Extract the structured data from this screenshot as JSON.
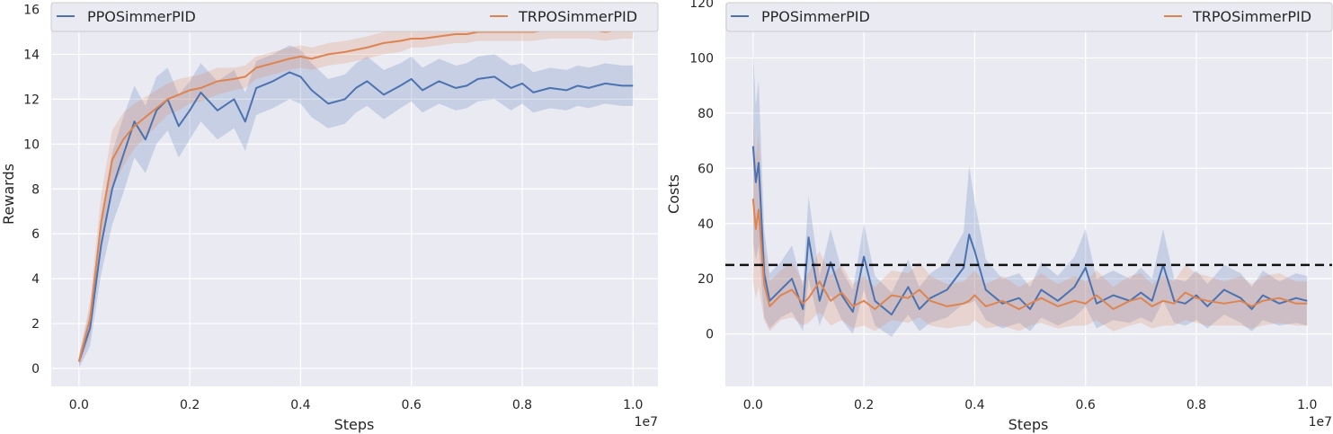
{
  "chart_data": [
    {
      "type": "line",
      "xlabel": "Steps",
      "ylabel": "Rewards",
      "x_scale_label": "1e7",
      "xlim": [
        -0.05,
        1.045
      ],
      "ylim": [
        -0.8,
        16.3
      ],
      "xticks": [
        0.0,
        0.2,
        0.4,
        0.6,
        0.8,
        1.0
      ],
      "xtick_labels": [
        "0.0",
        "0.2",
        "0.4",
        "0.6",
        "0.8",
        "1.0"
      ],
      "yticks": [
        0,
        2,
        4,
        6,
        8,
        10,
        12,
        14,
        16
      ],
      "ytick_labels": [
        "0",
        "2",
        "4",
        "6",
        "8",
        "10",
        "12",
        "14",
        "16"
      ],
      "grid": true,
      "legend_placement": "top",
      "series": [
        {
          "name": "PPOSimmerPID",
          "color": "#4c72b0",
          "x": [
            0.0,
            0.02,
            0.04,
            0.06,
            0.08,
            0.1,
            0.12,
            0.14,
            0.16,
            0.18,
            0.2,
            0.22,
            0.25,
            0.28,
            0.3,
            0.32,
            0.35,
            0.38,
            0.4,
            0.42,
            0.45,
            0.48,
            0.5,
            0.52,
            0.55,
            0.58,
            0.6,
            0.62,
            0.65,
            0.68,
            0.7,
            0.72,
            0.75,
            0.78,
            0.8,
            0.82,
            0.85,
            0.88,
            0.9,
            0.92,
            0.95,
            0.98,
            1.0
          ],
          "y": [
            0.3,
            1.8,
            5.5,
            8.0,
            9.5,
            11.0,
            10.2,
            11.5,
            12.0,
            10.8,
            11.5,
            12.3,
            11.5,
            12.0,
            11.0,
            12.5,
            12.8,
            13.2,
            13.0,
            12.4,
            11.8,
            12.0,
            12.5,
            12.8,
            12.2,
            12.6,
            12.9,
            12.4,
            12.8,
            12.5,
            12.6,
            12.9,
            13.0,
            12.5,
            12.7,
            12.3,
            12.5,
            12.4,
            12.6,
            12.5,
            12.7,
            12.6,
            12.6
          ],
          "band": [
            0.3,
            0.8,
            1.3,
            1.6,
            1.7,
            1.6,
            1.5,
            1.5,
            1.4,
            1.4,
            1.3,
            1.3,
            1.3,
            1.3,
            1.3,
            1.2,
            1.2,
            1.2,
            1.2,
            1.2,
            1.1,
            1.1,
            1.1,
            1.1,
            1.1,
            1.0,
            1.0,
            1.0,
            1.0,
            1.0,
            1.0,
            1.0,
            1.0,
            1.0,
            0.9,
            0.9,
            0.9,
            0.9,
            0.9,
            0.9,
            0.9,
            0.9,
            0.9
          ]
        },
        {
          "name": "TRPOSimmerPID",
          "color": "#dd8452",
          "x": [
            0.0,
            0.02,
            0.04,
            0.06,
            0.08,
            0.1,
            0.12,
            0.14,
            0.16,
            0.18,
            0.2,
            0.22,
            0.25,
            0.28,
            0.3,
            0.32,
            0.35,
            0.38,
            0.4,
            0.42,
            0.45,
            0.48,
            0.5,
            0.52,
            0.55,
            0.58,
            0.6,
            0.62,
            0.65,
            0.68,
            0.7,
            0.72,
            0.75,
            0.78,
            0.8,
            0.82,
            0.85,
            0.88,
            0.9,
            0.92,
            0.95,
            0.98,
            1.0
          ],
          "y": [
            0.3,
            2.2,
            6.5,
            9.3,
            10.2,
            10.8,
            11.2,
            11.6,
            12.0,
            12.2,
            12.4,
            12.5,
            12.8,
            12.9,
            13.0,
            13.4,
            13.6,
            13.8,
            13.9,
            13.8,
            14.0,
            14.1,
            14.2,
            14.3,
            14.5,
            14.6,
            14.7,
            14.7,
            14.8,
            14.9,
            14.9,
            15.0,
            15.0,
            15.0,
            15.0,
            15.0,
            15.1,
            15.1,
            15.1,
            15.1,
            15.0,
            15.1,
            15.1
          ],
          "band": [
            0.2,
            0.8,
            1.2,
            1.3,
            1.2,
            1.0,
            0.9,
            0.8,
            0.7,
            0.7,
            0.6,
            0.6,
            0.6,
            0.5,
            0.5,
            0.5,
            0.5,
            0.5,
            0.5,
            0.5,
            0.5,
            0.5,
            0.5,
            0.5,
            0.5,
            0.5,
            0.4,
            0.4,
            0.4,
            0.4,
            0.4,
            0.4,
            0.4,
            0.4,
            0.4,
            0.4,
            0.4,
            0.4,
            0.4,
            0.4,
            0.4,
            0.4,
            0.4
          ]
        }
      ]
    },
    {
      "type": "line",
      "xlabel": "Steps",
      "ylabel": "Costs",
      "x_scale_label": "1e7",
      "xlim": [
        -0.05,
        1.045
      ],
      "ylim": [
        -19,
        120
      ],
      "xticks": [
        0.0,
        0.2,
        0.4,
        0.6,
        0.8,
        1.0
      ],
      "xtick_labels": [
        "0.0",
        "0.2",
        "0.4",
        "0.6",
        "0.8",
        "1.0"
      ],
      "yticks": [
        0,
        20,
        40,
        60,
        80,
        100,
        120
      ],
      "ytick_labels": [
        "0",
        "20",
        "40",
        "60",
        "80",
        "100",
        "120"
      ],
      "grid": true,
      "legend_placement": "top",
      "threshold": 25,
      "series": [
        {
          "name": "PPOSimmerPID",
          "color": "#4c72b0",
          "x": [
            0.0,
            0.005,
            0.01,
            0.02,
            0.03,
            0.05,
            0.07,
            0.09,
            0.1,
            0.12,
            0.14,
            0.16,
            0.18,
            0.2,
            0.22,
            0.25,
            0.28,
            0.3,
            0.32,
            0.35,
            0.38,
            0.39,
            0.4,
            0.42,
            0.45,
            0.48,
            0.5,
            0.52,
            0.55,
            0.58,
            0.6,
            0.62,
            0.65,
            0.68,
            0.7,
            0.72,
            0.74,
            0.76,
            0.78,
            0.8,
            0.82,
            0.85,
            0.88,
            0.9,
            0.92,
            0.95,
            0.98,
            1.0
          ],
          "y": [
            68,
            55,
            62,
            22,
            12,
            16,
            20,
            9,
            35,
            12,
            26,
            14,
            8,
            28,
            12,
            7,
            17,
            9,
            13,
            16,
            24,
            36,
            30,
            16,
            11,
            13,
            9,
            16,
            12,
            17,
            24,
            11,
            14,
            12,
            15,
            12,
            25,
            12,
            11,
            14,
            10,
            16,
            13,
            9,
            14,
            11,
            13,
            12
          ],
          "band": [
            35,
            28,
            30,
            16,
            10,
            10,
            12,
            8,
            15,
            9,
            12,
            9,
            8,
            12,
            9,
            8,
            10,
            8,
            9,
            10,
            13,
            25,
            18,
            11,
            9,
            9,
            8,
            10,
            9,
            11,
            14,
            9,
            9,
            8,
            9,
            8,
            13,
            8,
            8,
            9,
            8,
            9,
            9,
            8,
            9,
            8,
            9,
            9
          ]
        },
        {
          "name": "TRPOSimmerPID",
          "color": "#dd8452",
          "x": [
            0.0,
            0.005,
            0.01,
            0.02,
            0.03,
            0.05,
            0.07,
            0.09,
            0.1,
            0.12,
            0.14,
            0.16,
            0.18,
            0.2,
            0.22,
            0.25,
            0.28,
            0.3,
            0.32,
            0.35,
            0.38,
            0.39,
            0.4,
            0.42,
            0.45,
            0.48,
            0.5,
            0.52,
            0.55,
            0.58,
            0.6,
            0.62,
            0.65,
            0.68,
            0.7,
            0.72,
            0.74,
            0.76,
            0.78,
            0.8,
            0.82,
            0.85,
            0.88,
            0.9,
            0.92,
            0.95,
            0.98,
            1.0
          ],
          "y": [
            49,
            38,
            45,
            18,
            10,
            14,
            16,
            11,
            13,
            19,
            12,
            15,
            10,
            12,
            9,
            14,
            13,
            16,
            12,
            10,
            11,
            12,
            14,
            10,
            12,
            9,
            11,
            13,
            10,
            12,
            11,
            14,
            9,
            12,
            13,
            10,
            12,
            11,
            15,
            13,
            12,
            11,
            12,
            10,
            12,
            13,
            11,
            11
          ],
          "band": [
            30,
            25,
            28,
            13,
            9,
            9,
            10,
            8,
            9,
            11,
            9,
            10,
            8,
            9,
            8,
            9,
            9,
            10,
            9,
            8,
            8,
            9,
            9,
            8,
            9,
            8,
            8,
            9,
            8,
            9,
            8,
            9,
            8,
            9,
            9,
            8,
            9,
            8,
            10,
            9,
            9,
            8,
            9,
            8,
            9,
            9,
            8,
            8
          ]
        }
      ]
    }
  ]
}
